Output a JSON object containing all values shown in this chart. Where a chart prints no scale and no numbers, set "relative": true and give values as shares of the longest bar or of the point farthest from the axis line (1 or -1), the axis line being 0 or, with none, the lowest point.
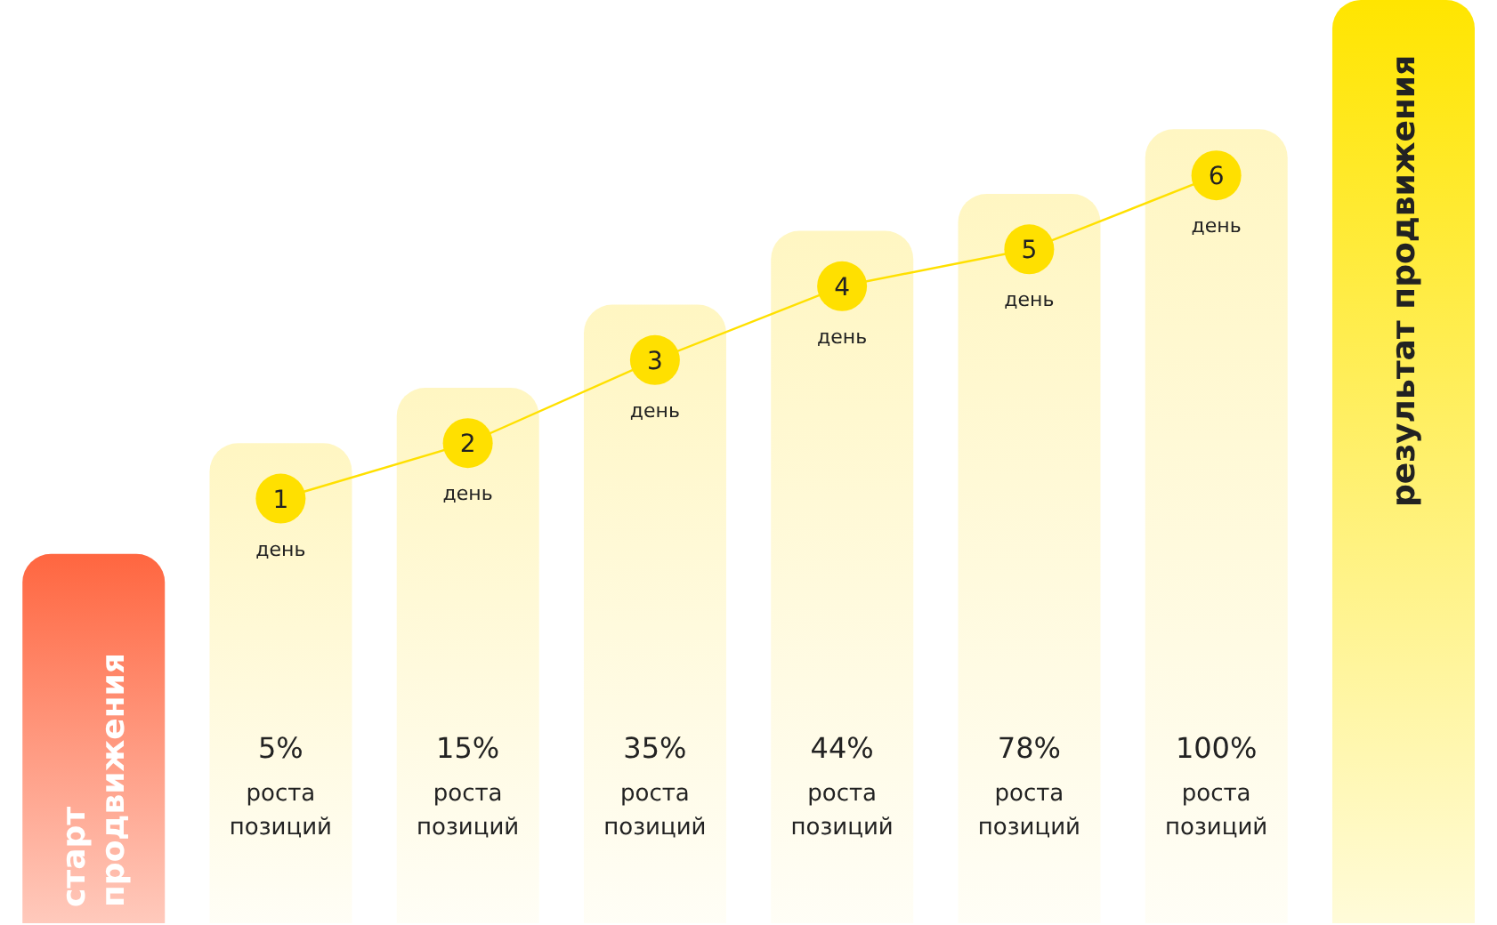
{
  "chart_data": {
    "type": "bar",
    "relative": true,
    "categories": [
      "старт продвижения",
      "5% роста позиций",
      "15% роста позиций",
      "35% роста позиций",
      "44% роста позиций",
      "78% роста позиций",
      "100% роста позиций",
      "результат продвижения"
    ],
    "series": [
      {
        "values": [
          0.4,
          0.52,
          0.58,
          0.67,
          0.75,
          0.79,
          0.86,
          1
        ],
        "colors": [
          "#ff6640",
          "#fff6c2",
          "#fff6c2",
          "#fff6c2",
          "#fff6c2",
          "#fff6c2",
          "#fff6c2",
          "#ffe500"
        ]
      },
      {
        "type": "line",
        "color": "#ffe000",
        "values": [
          null,
          0.46,
          0.52,
          0.61,
          0.69,
          0.73,
          0.81,
          null
        ]
      }
    ],
    "annotations": [
      {
        "text": "1 день",
        "x": "5% роста позиций",
        "y": 0.46
      },
      {
        "text": "2 день",
        "x": "15% роста позиций",
        "y": 0.52
      },
      {
        "text": "3 день",
        "x": "35% роста позиций",
        "y": 0.61
      },
      {
        "text": "4 день",
        "x": "44% роста позиций",
        "y": 0.69
      },
      {
        "text": "5 день",
        "x": "78% роста позиций",
        "y": 0.73
      },
      {
        "text": "6 день",
        "x": "100% роста позиций",
        "y": 0.81
      }
    ],
    "marker": "circle"
  }
}
